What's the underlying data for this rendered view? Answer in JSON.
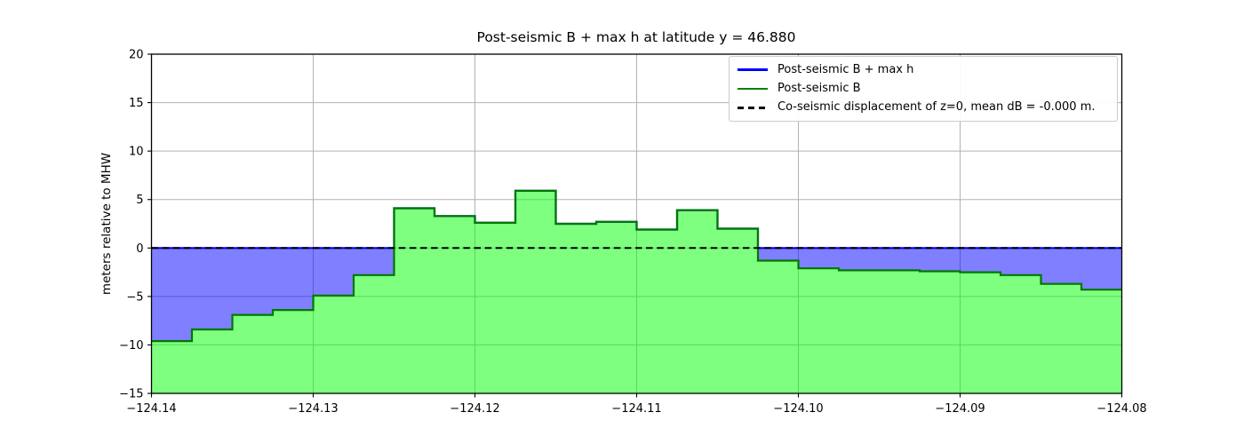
{
  "chart_data": {
    "type": "area",
    "title": "Post-seismic B + max h at latitude y = 46.880",
    "xlabel": "",
    "ylabel": "meters relative to MHW",
    "xlim": [
      -124.14,
      -124.08
    ],
    "ylim": [
      -15,
      20
    ],
    "grid": true,
    "legend_position": "upper right",
    "x_step_edges": [
      -124.14,
      -124.1375,
      -124.135,
      -124.1325,
      -124.13,
      -124.1275,
      -124.125,
      -124.1225,
      -124.12,
      -124.1175,
      -124.115,
      -124.1125,
      -124.11,
      -124.1075,
      -124.105,
      -124.1025,
      -124.1,
      -124.0975,
      -124.095,
      -124.0925,
      -124.09,
      -124.0875,
      -124.085,
      -124.0825,
      -124.08
    ],
    "series": [
      {
        "name": "Post-seismic B + max h",
        "color": "#0000ff",
        "style": "solid",
        "values": [
          0,
          0,
          0,
          0,
          0,
          0,
          4.1,
          3.3,
          2.6,
          5.9,
          2.5,
          2.7,
          1.9,
          3.9,
          2.0,
          0,
          0,
          0,
          0,
          0,
          0,
          0,
          0,
          0
        ]
      },
      {
        "name": "Post-seismic B",
        "color": "#008000",
        "style": "solid",
        "values": [
          -9.6,
          -8.4,
          -6.9,
          -6.4,
          -4.9,
          -2.8,
          4.1,
          3.3,
          2.6,
          5.9,
          2.5,
          2.7,
          1.9,
          3.9,
          2.0,
          -1.3,
          -2.1,
          -2.3,
          -2.3,
          -2.4,
          -2.5,
          -2.8,
          -3.7,
          -4.3
        ]
      },
      {
        "name": "Co-seismic displacement of z=0, mean dB = -0.000 m.",
        "color": "#000000",
        "style": "dashed",
        "constant": 0
      }
    ],
    "fills": [
      {
        "between": [
          "Post-seismic B",
          "ylim_bottom"
        ],
        "color": "#00ff00",
        "alpha": 0.5
      },
      {
        "between": [
          "Post-seismic B + max h",
          "Post-seismic B"
        ],
        "color": "#0000ff",
        "alpha": 0.5
      }
    ],
    "xticks": {
      "values": [
        -124.14,
        -124.13,
        -124.12,
        -124.11,
        -124.1,
        -124.09,
        -124.08
      ],
      "labels": [
        "−124.14",
        "−124.13",
        "−124.12",
        "−124.11",
        "−124.10",
        "−124.09",
        "−124.08"
      ]
    },
    "yticks": {
      "values": [
        20,
        15,
        10,
        5,
        0,
        -5,
        -10,
        -15
      ],
      "labels": [
        "20",
        "15",
        "10",
        "5",
        "0",
        "−5",
        "−10",
        "−15"
      ]
    },
    "grid_color": "#b2b2b2"
  }
}
